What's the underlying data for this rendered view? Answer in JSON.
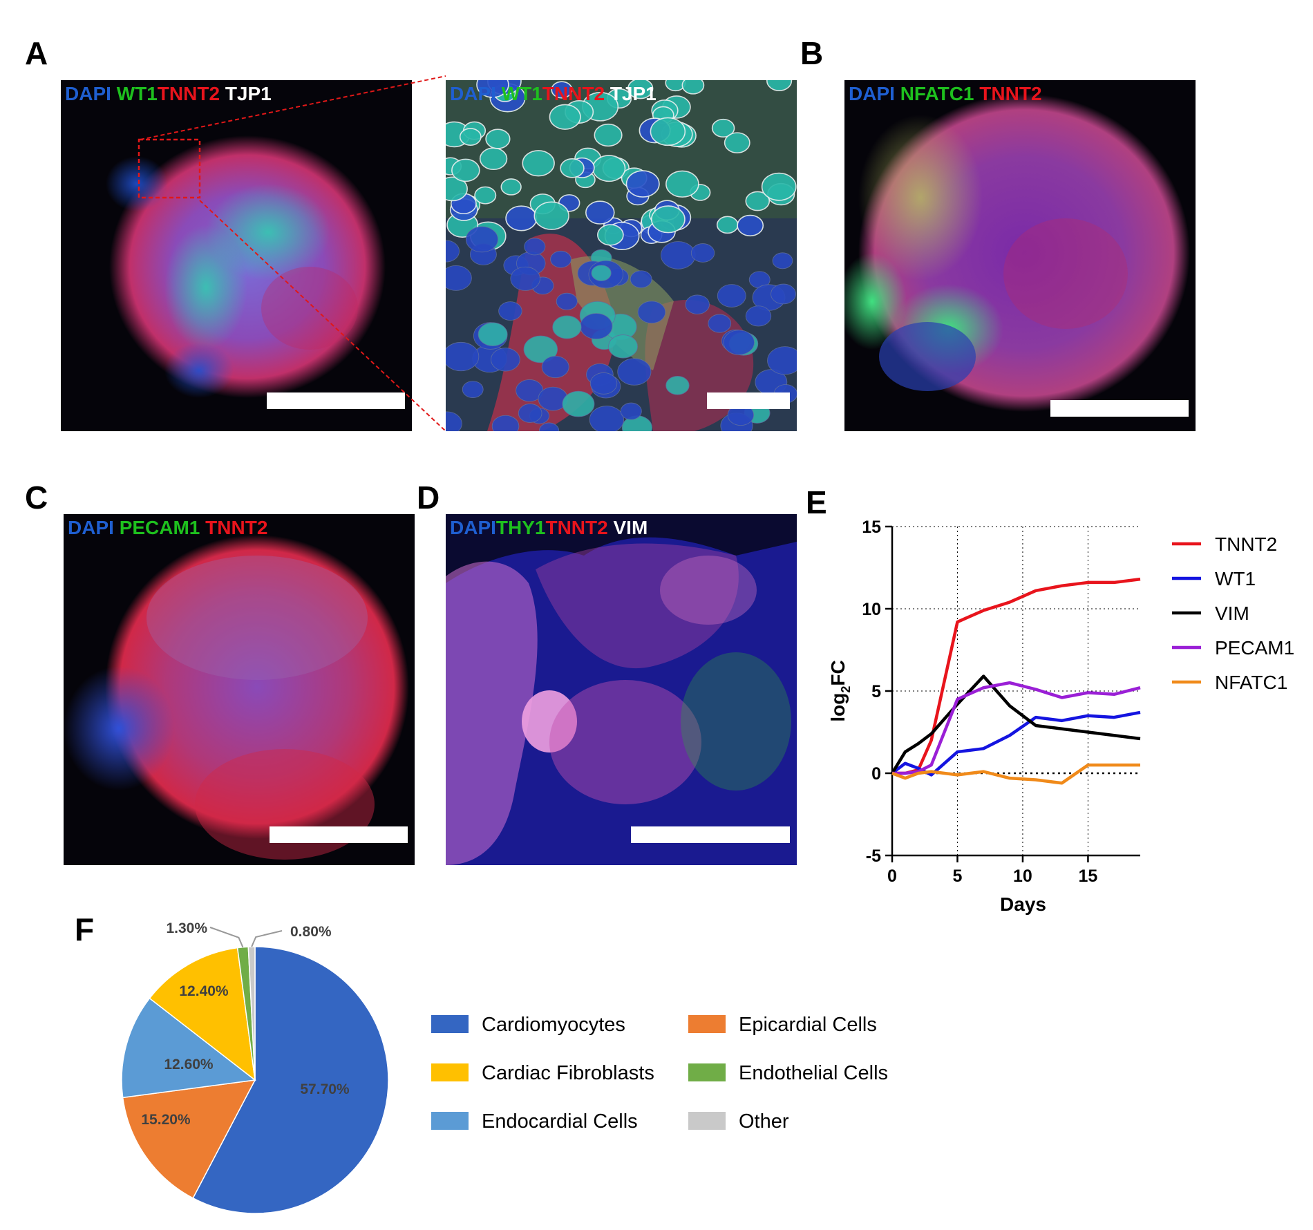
{
  "panels": {
    "A": {
      "letter": "A",
      "stain": [
        {
          "t": "DAPI",
          "c": "#1f5fd1"
        },
        {
          "t": "WT1",
          "c": "#1ec01e"
        },
        {
          "t": "TNNT2",
          "c": "#e8141c"
        },
        {
          "t": "TJP1",
          "c": "#ffffff"
        }
      ]
    },
    "A_zoom": {
      "stain": [
        {
          "t": "DAPI",
          "c": "#1f5fd1"
        },
        {
          "t": "WT1",
          "c": "#1ec01e"
        },
        {
          "t": "TNNT2",
          "c": "#e8141c"
        },
        {
          "t": "TJP1",
          "c": "#ffffff"
        }
      ]
    },
    "B": {
      "letter": "B",
      "stain": [
        {
          "t": "DAPI",
          "c": "#1f5fd1"
        },
        {
          "t": "NFATC1",
          "c": "#1ec01e"
        },
        {
          "t": "TNNT2",
          "c": "#e8141c"
        }
      ]
    },
    "C": {
      "letter": "C",
      "stain": [
        {
          "t": "DAPI",
          "c": "#1f5fd1"
        },
        {
          "t": "PECAM1",
          "c": "#1ec01e"
        },
        {
          "t": "TNNT2",
          "c": "#e8141c"
        }
      ]
    },
    "D": {
      "letter": "D",
      "stain": [
        {
          "t": "DAPI",
          "c": "#1f5fd1"
        },
        {
          "t": "THY1",
          "c": "#1ec01e"
        },
        {
          "t": "TNNT2",
          "c": "#e8141c"
        },
        {
          "t": "VIM",
          "c": "#ffffff"
        }
      ]
    },
    "E": {
      "letter": "E"
    },
    "F": {
      "letter": "F"
    }
  },
  "chart_data": [
    {
      "type": "line",
      "xlabel": "Days",
      "ylabel": "log2FC",
      "xlim": [
        0,
        19
      ],
      "ylim": [
        -5,
        15
      ],
      "xticks": [
        0,
        5,
        10,
        15
      ],
      "yticks": [
        -5,
        0,
        5,
        10,
        15
      ],
      "grid": "vertical and horizontal dotted",
      "legend": "right",
      "series": [
        {
          "name": "TNNT2",
          "color": "#e8141c",
          "x": [
            0,
            1,
            2,
            3,
            5,
            7,
            9,
            11,
            13,
            15,
            17,
            19
          ],
          "y": [
            0,
            0,
            0.2,
            2,
            9.2,
            9.9,
            10.4,
            11.1,
            11.4,
            11.6,
            11.6,
            11.8
          ]
        },
        {
          "name": "WT1",
          "color": "#1414e0",
          "x": [
            0,
            1,
            2,
            3,
            5,
            7,
            9,
            11,
            13,
            15,
            17,
            19
          ],
          "y": [
            0,
            0.6,
            0.3,
            -0.1,
            1.3,
            1.5,
            2.3,
            3.4,
            3.2,
            3.5,
            3.4,
            3.7
          ]
        },
        {
          "name": "VIM",
          "color": "#000000",
          "x": [
            0,
            1,
            2,
            3,
            5,
            7,
            9,
            11,
            13,
            15,
            17,
            19
          ],
          "y": [
            0,
            1.3,
            1.8,
            2.4,
            4.2,
            5.9,
            4.1,
            2.9,
            2.7,
            2.5,
            2.3,
            2.1
          ]
        },
        {
          "name": "PECAM1",
          "color": "#9a1fd6",
          "x": [
            0,
            1,
            2,
            3,
            5,
            7,
            9,
            11,
            13,
            15,
            17,
            19
          ],
          "y": [
            0,
            0,
            0.1,
            0.5,
            4.5,
            5.2,
            5.5,
            5.1,
            4.6,
            4.9,
            4.8,
            5.2
          ]
        },
        {
          "name": "NFATC1",
          "color": "#f08a1a",
          "x": [
            0,
            1,
            2,
            3,
            5,
            7,
            9,
            11,
            13,
            15,
            17,
            19
          ],
          "y": [
            0,
            -0.3,
            0,
            0.1,
            -0.1,
            0.1,
            -0.3,
            -0.4,
            -0.6,
            0.5,
            0.5,
            0.5
          ]
        }
      ]
    },
    {
      "type": "pie",
      "slices": [
        {
          "label": "Cardiomyocytes",
          "value": 57.7,
          "text": "57.70%",
          "color": "#3466c2"
        },
        {
          "label": "Epicardial Cells",
          "value": 15.2,
          "text": "15.20%",
          "color": "#ed7d31"
        },
        {
          "label": "Endocardial Cells",
          "value": 12.6,
          "text": "12.60%",
          "color": "#5b9bd5"
        },
        {
          "label": "Cardiac Fibroblasts",
          "value": 12.4,
          "text": "12.40%",
          "color": "#ffc000"
        },
        {
          "label": "Endothelial Cells",
          "value": 1.3,
          "text": "1.30%",
          "color": "#70ad47"
        },
        {
          "label": "Other",
          "value": 0.8,
          "text": "0.80%",
          "color": "#c9c9c9"
        }
      ],
      "legend": "right"
    }
  ]
}
